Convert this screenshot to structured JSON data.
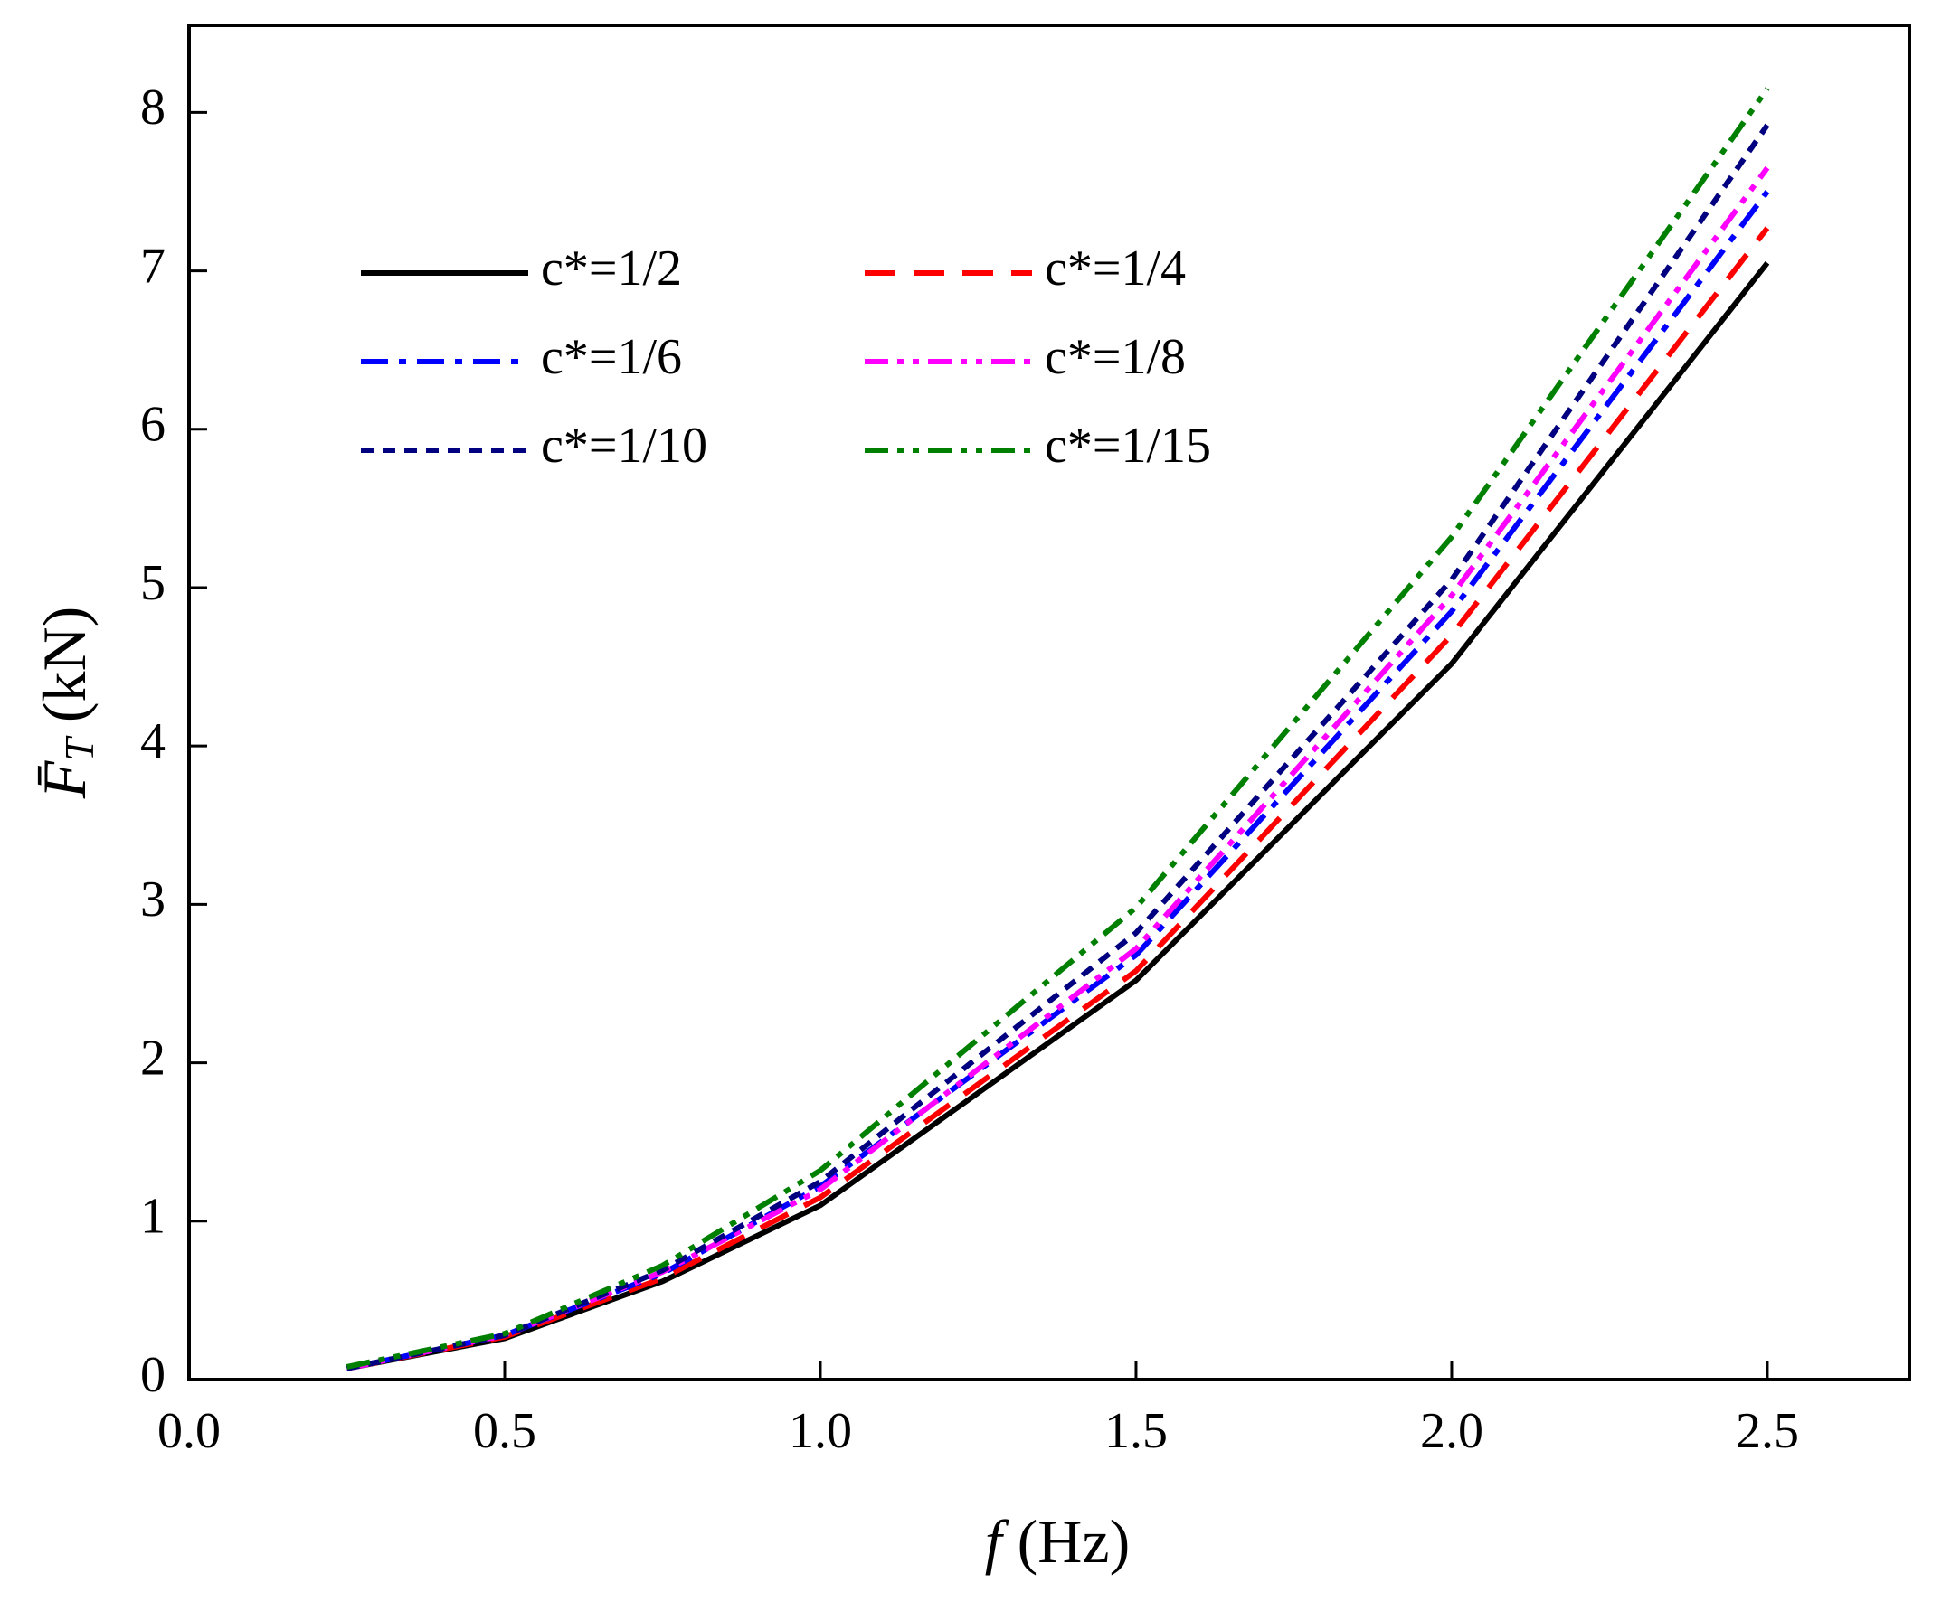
{
  "chart_data": {
    "type": "line",
    "x_label_symbol": "f",
    "x_label_unit": "(Hz)",
    "y_label_symbol": "F̄",
    "y_label_subscript": "T",
    "y_label_unit": "(kN)",
    "x": [
      0.25,
      0.5,
      0.75,
      1.0,
      1.5,
      2.0,
      2.5
    ],
    "series": [
      {
        "name": "c*=1/2",
        "color": "#000000",
        "dash": "solid",
        "values": [
          0.07,
          0.26,
          0.62,
          1.1,
          2.52,
          4.52,
          7.05
        ]
      },
      {
        "name": "c*=1/4",
        "color": "#ff0000",
        "dash": "dash",
        "values": [
          0.07,
          0.27,
          0.64,
          1.15,
          2.58,
          4.7,
          7.27
        ]
      },
      {
        "name": "c*=1/6",
        "color": "#0000ff",
        "dash": "dashdot",
        "values": [
          0.07,
          0.28,
          0.67,
          1.22,
          2.68,
          4.85,
          7.5
        ]
      },
      {
        "name": "c*=1/8",
        "color": "#ff00ff",
        "dash": "dashdotdot",
        "values": [
          0.07,
          0.28,
          0.68,
          1.2,
          2.72,
          4.95,
          7.65
        ]
      },
      {
        "name": "c*=1/10",
        "color": "#000080",
        "dash": "shortdash",
        "values": [
          0.07,
          0.28,
          0.69,
          1.25,
          2.82,
          5.05,
          7.92
        ]
      },
      {
        "name": "c*=1/15",
        "color": "#008000",
        "dash": "dashdotdot",
        "values": [
          0.08,
          0.29,
          0.72,
          1.32,
          2.98,
          5.32,
          8.15
        ]
      }
    ],
    "xlim": [
      0,
      2.725
    ],
    "xticks": [
      {
        "value": 0,
        "label": "0.0"
      },
      0.5,
      {
        "value": 1,
        "label": "1.0"
      },
      1.5,
      {
        "value": 2,
        "label": "2.0"
      },
      2.5
    ],
    "ylim": [
      0,
      8.55
    ],
    "yticks": [
      0,
      1,
      2,
      3,
      4,
      5,
      6,
      7,
      8
    ],
    "grid": false,
    "legend": "upper left"
  }
}
